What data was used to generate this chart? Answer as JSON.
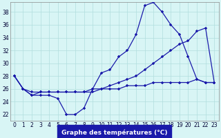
{
  "hours": [
    0,
    1,
    2,
    3,
    4,
    5,
    6,
    7,
    8,
    9,
    10,
    11,
    12,
    13,
    14,
    15,
    16,
    17,
    18,
    19,
    20,
    21,
    22,
    23
  ],
  "temp_line1": [
    28,
    26,
    25,
    25,
    25,
    24.5,
    22,
    22,
    23,
    26,
    28.5,
    29,
    31,
    32,
    34.5,
    39,
    39.5,
    38,
    36,
    34.5,
    31,
    27.5,
    27,
    27
  ],
  "temp_line2": [
    28,
    26,
    25,
    25.5,
    25.5,
    25.5,
    25.5,
    25.5,
    25.5,
    25.5,
    26,
    26.5,
    27,
    27.5,
    28,
    29,
    30,
    31,
    32,
    33,
    33.5,
    35,
    35.5,
    27
  ],
  "temp_line3": [
    28,
    26,
    25.5,
    25.5,
    25.5,
    25.5,
    25.5,
    25.5,
    25.5,
    26,
    26,
    26,
    26,
    26.5,
    26.5,
    26.5,
    27,
    27,
    27,
    27,
    27,
    27.5,
    27,
    27
  ],
  "line_color": "#1a1aaa",
  "marker": "+",
  "bg_color": "#d8f5f5",
  "grid_color": "#b0dede",
  "xlabel": "Graphe des températures (°C)",
  "yticks": [
    22,
    24,
    26,
    28,
    30,
    32,
    34,
    36,
    38
  ],
  "ylim": [
    21.0,
    39.5
  ],
  "xlim": [
    -0.5,
    23.5
  ]
}
